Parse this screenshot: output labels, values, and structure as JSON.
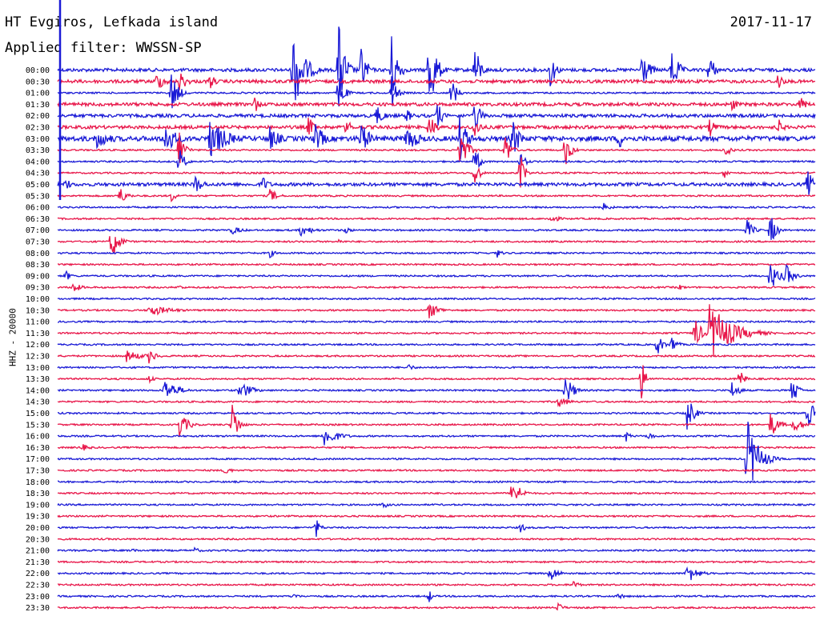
{
  "header": {
    "station": "HT Evgiros, Lefkada island",
    "date": "2017-11-17",
    "filter": "Applied filter: WWSSN-SP"
  },
  "chart_data": {
    "type": "line",
    "title": "HT Evgiros, Lefkada island",
    "subtitle": "Applied filter: WWSSN-SP",
    "ylabel": "HHZ - 20000",
    "date": "2017-11-17",
    "row_labels": [
      "00:00",
      "00:30",
      "01:00",
      "01:30",
      "02:00",
      "02:30",
      "03:00",
      "03:30",
      "04:00",
      "04:30",
      "05:00",
      "05:30",
      "06:00",
      "06:30",
      "07:00",
      "07:30",
      "08:00",
      "08:30",
      "09:00",
      "09:30",
      "10:00",
      "10:30",
      "11:00",
      "11:30",
      "12:00",
      "12:30",
      "13:00",
      "13:30",
      "14:00",
      "14:30",
      "15:00",
      "15:30",
      "16:00",
      "16:30",
      "17:00",
      "17:30",
      "18:00",
      "18:30",
      "19:00",
      "19:30",
      "20:00",
      "20:30",
      "21:00",
      "21:30",
      "22:00",
      "22:30",
      "23:00",
      "23:30"
    ],
    "colors": [
      "#1a1ad6",
      "#e8174a"
    ],
    "noise": [
      2,
      2,
      1,
      2,
      2,
      2,
      3,
      1,
      1,
      1,
      2,
      1,
      1,
      1,
      1,
      1,
      1,
      1,
      1,
      1,
      1,
      1,
      1,
      1,
      1,
      1,
      1,
      1,
      1,
      1,
      1,
      1,
      1,
      1,
      1,
      1,
      1,
      1,
      1,
      1,
      1,
      1,
      1,
      1,
      1,
      1,
      1,
      1
    ],
    "events": [
      [
        [
          0.31,
          60,
          20
        ],
        [
          0.37,
          70,
          12
        ],
        [
          0.4,
          40,
          10
        ],
        [
          0.44,
          50,
          12
        ],
        [
          0.49,
          66,
          12
        ],
        [
          0.55,
          40,
          10
        ],
        [
          0.65,
          26,
          10
        ],
        [
          0.77,
          28,
          14
        ],
        [
          0.81,
          36,
          12
        ],
        [
          0.86,
          24,
          10
        ]
      ],
      [
        [
          0.13,
          12,
          20
        ],
        [
          0.16,
          16,
          14
        ],
        [
          0.2,
          14,
          10
        ],
        [
          0.95,
          14,
          10
        ]
      ],
      [
        [
          0.15,
          30,
          12
        ],
        [
          0.37,
          30,
          10
        ],
        [
          0.44,
          26,
          10
        ],
        [
          0.52,
          22,
          10
        ]
      ],
      [
        [
          0.26,
          12,
          10
        ],
        [
          0.89,
          10,
          10
        ],
        [
          0.98,
          12,
          12
        ]
      ],
      [
        [
          0.42,
          14,
          16
        ],
        [
          0.46,
          10,
          12
        ],
        [
          0.5,
          22,
          10
        ],
        [
          0.55,
          28,
          10
        ]
      ],
      [
        [
          0.33,
          18,
          10
        ],
        [
          0.38,
          14,
          10
        ],
        [
          0.49,
          20,
          12
        ],
        [
          0.55,
          18,
          10
        ],
        [
          0.86,
          14,
          12
        ],
        [
          0.95,
          14,
          10
        ]
      ],
      [
        [
          0.05,
          14,
          30
        ],
        [
          0.14,
          26,
          20
        ],
        [
          0.2,
          30,
          30
        ],
        [
          0.28,
          16,
          20
        ],
        [
          0.34,
          20,
          18
        ],
        [
          0.4,
          24,
          16
        ],
        [
          0.46,
          22,
          20
        ],
        [
          0.53,
          34,
          14
        ],
        [
          0.6,
          28,
          14
        ],
        [
          0.74,
          16,
          12
        ]
      ],
      [
        [
          0.16,
          30,
          10
        ],
        [
          0.53,
          30,
          14
        ],
        [
          0.59,
          26,
          10
        ],
        [
          0.67,
          24,
          10
        ],
        [
          0.88,
          12,
          10
        ]
      ],
      [
        [
          0.16,
          20,
          10
        ],
        [
          0.55,
          20,
          10
        ],
        [
          0.61,
          14,
          10
        ]
      ],
      [
        [
          0.55,
          24,
          8
        ],
        [
          0.61,
          30,
          8
        ],
        [
          0.88,
          8,
          8
        ]
      ],
      [
        [
          0.01,
          10,
          10
        ],
        [
          0.18,
          14,
          16
        ],
        [
          0.27,
          12,
          12
        ],
        [
          0.99,
          22,
          10
        ]
      ],
      [
        [
          0.08,
          14,
          14
        ],
        [
          0.15,
          8,
          10
        ],
        [
          0.28,
          10,
          14
        ]
      ],
      [
        [
          0.72,
          6,
          14
        ]
      ],
      [
        [
          0.65,
          6,
          18
        ]
      ],
      [
        [
          0.23,
          6,
          20
        ],
        [
          0.32,
          8,
          24
        ],
        [
          0.38,
          6,
          10
        ],
        [
          0.91,
          14,
          12
        ],
        [
          0.94,
          26,
          10
        ]
      ],
      [
        [
          0.07,
          26,
          14
        ],
        [
          0.37,
          4,
          10
        ]
      ],
      [
        [
          0.28,
          6,
          10
        ],
        [
          0.58,
          6,
          10
        ]
      ],
      [],
      [
        [
          0.01,
          8,
          10
        ],
        [
          0.94,
          22,
          14
        ],
        [
          0.96,
          18,
          14
        ]
      ],
      [
        [
          0.02,
          8,
          14
        ],
        [
          0.16,
          4,
          10
        ],
        [
          0.82,
          4,
          12
        ]
      ],
      [],
      [
        [
          0.12,
          8,
          40
        ],
        [
          0.49,
          12,
          18
        ]
      ],
      [],
      [
        [
          0.84,
          26,
          12
        ],
        [
          0.86,
          40,
          40
        ]
      ],
      [
        [
          0.79,
          16,
          12
        ],
        [
          0.81,
          14,
          10
        ]
      ],
      [
        [
          0.09,
          8,
          30
        ],
        [
          0.12,
          10,
          14
        ]
      ],
      [
        [
          0.46,
          6,
          14
        ]
      ],
      [
        [
          0.12,
          6,
          10
        ],
        [
          0.77,
          30,
          8
        ],
        [
          0.9,
          16,
          8
        ]
      ],
      [
        [
          0.14,
          16,
          24
        ],
        [
          0.24,
          14,
          20
        ],
        [
          0.67,
          22,
          14
        ],
        [
          0.89,
          12,
          14
        ],
        [
          0.97,
          26,
          8
        ]
      ],
      [
        [
          0.66,
          8,
          20
        ]
      ],
      [
        [
          0.83,
          28,
          12
        ],
        [
          0.99,
          20,
          14
        ]
      ],
      [
        [
          0.16,
          18,
          16
        ],
        [
          0.23,
          34,
          10
        ],
        [
          0.94,
          20,
          14
        ],
        [
          0.97,
          10,
          20
        ]
      ],
      [
        [
          0.35,
          16,
          24
        ],
        [
          0.75,
          8,
          8
        ],
        [
          0.78,
          8,
          8
        ]
      ],
      [
        [
          0.03,
          6,
          16
        ]
      ],
      [
        [
          0.91,
          54,
          20
        ]
      ],
      [
        [
          0.22,
          8,
          10
        ]
      ],
      [],
      [
        [
          0.6,
          22,
          14
        ]
      ],
      [
        [
          0.43,
          6,
          8
        ]
      ],
      [],
      [
        [
          0.34,
          16,
          8
        ],
        [
          0.61,
          8,
          10
        ]
      ],
      [],
      [
        [
          0.1,
          4,
          8
        ],
        [
          0.18,
          4,
          14
        ]
      ],
      [],
      [
        [
          0.65,
          12,
          14
        ],
        [
          0.83,
          14,
          20
        ]
      ],
      [
        [
          0.68,
          8,
          10
        ]
      ],
      [
        [
          0.31,
          6,
          10
        ],
        [
          0.49,
          10,
          6
        ],
        [
          0.74,
          6,
          10
        ]
      ],
      [
        [
          0.66,
          8,
          10
        ]
      ]
    ],
    "trigger_marker": "00:00"
  }
}
